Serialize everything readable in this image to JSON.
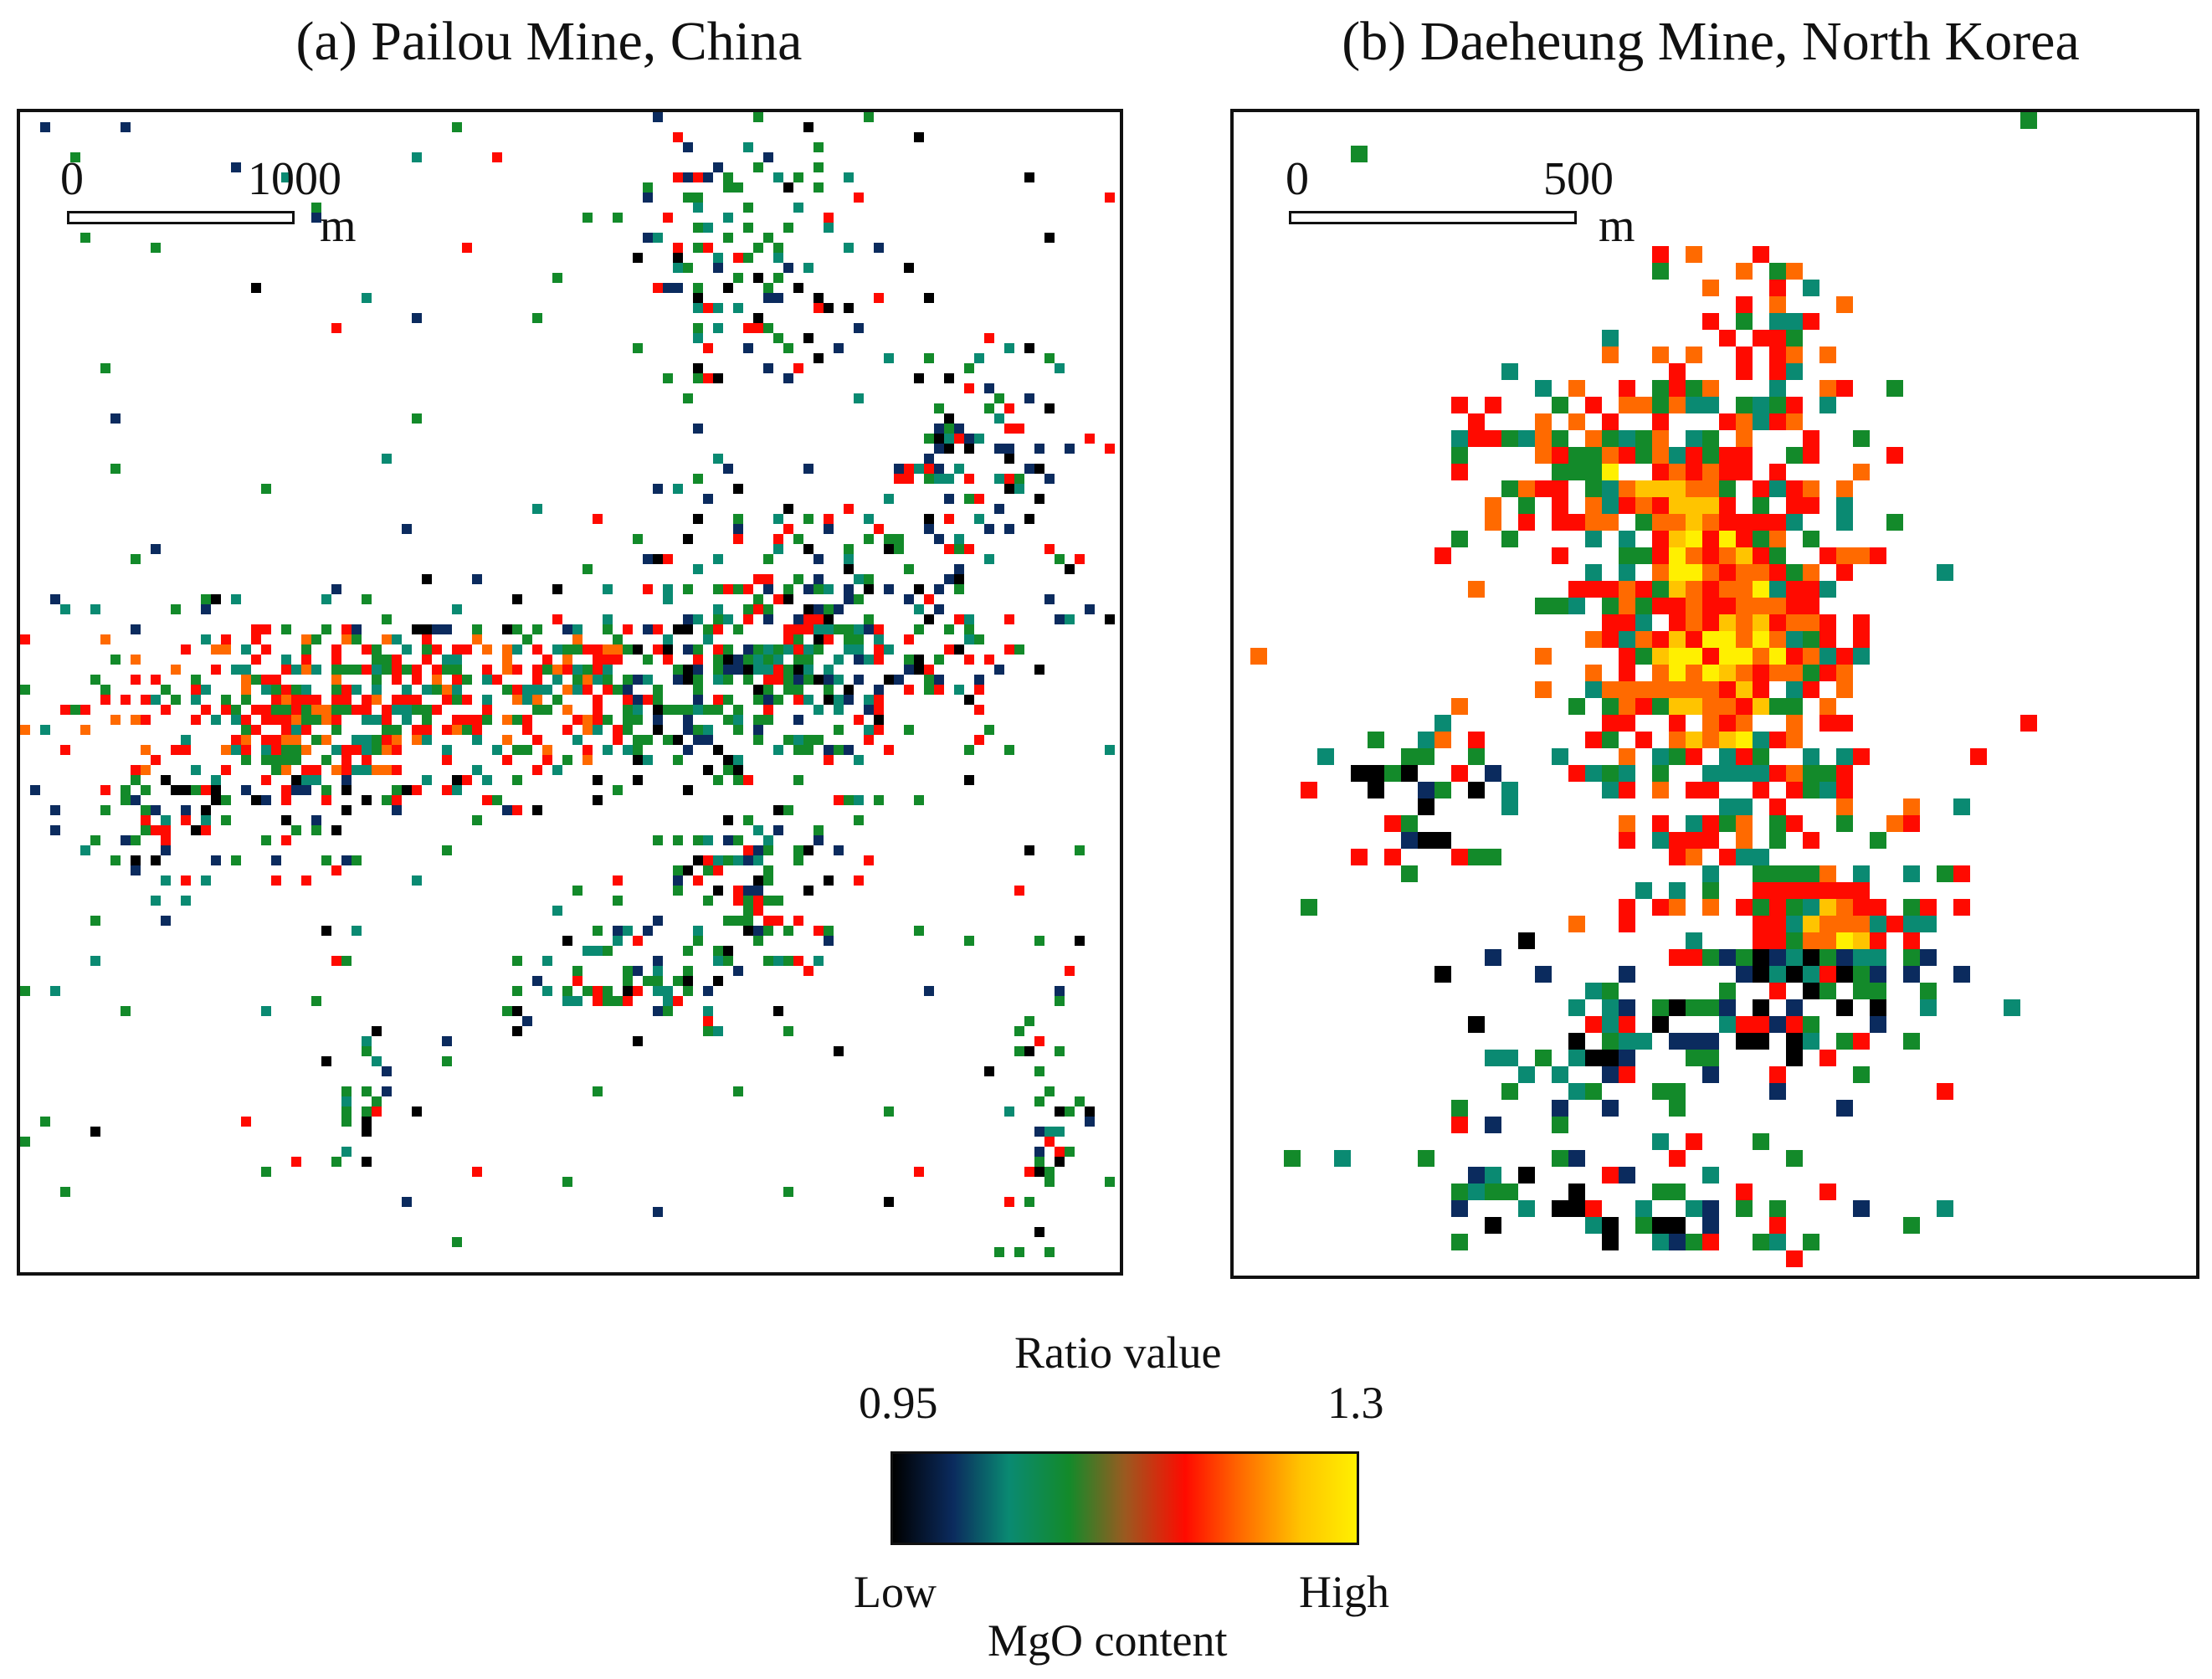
{
  "figure": {
    "panel_a": {
      "title": "(a) Pailou Mine, China",
      "scale": {
        "start": "0",
        "end": "1000",
        "unit": "m"
      }
    },
    "panel_b": {
      "title": "(b) Daeheung Mine, North Korea",
      "scale": {
        "start": "0",
        "end": "500",
        "unit": "m"
      }
    },
    "legend": {
      "title": "Ratio value",
      "min": "0.95",
      "max": "1.3",
      "low_label": "Low",
      "high_label": "High",
      "variable": "MgO content",
      "colors": [
        "#000000",
        "#0b2b5e",
        "#0a8a72",
        "#138a2a",
        "#9a5a20",
        "#ff0a00",
        "#ff6a00",
        "#ffc400",
        "#fff000"
      ]
    }
  }
}
